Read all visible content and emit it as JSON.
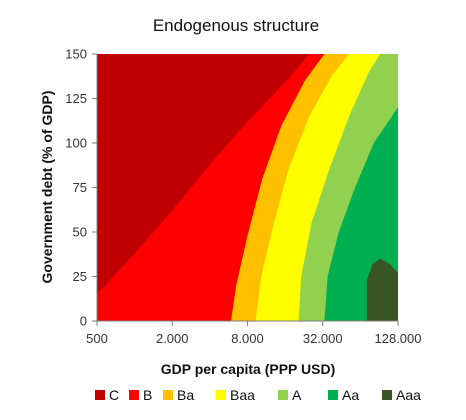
{
  "chart_data": {
    "type": "area",
    "title": "Endogenous structure",
    "xlabel": "GDP per capita (PPP USD)",
    "ylabel": "Government debt (% of GDP)",
    "x_scale": "log",
    "xlim": [
      500,
      128000
    ],
    "ylim": [
      0,
      150
    ],
    "x_ticks": [
      500,
      2000,
      8000,
      32000,
      128000
    ],
    "x_tick_labels": [
      "500",
      "2.000",
      "8.000",
      "32.000",
      "128.000"
    ],
    "y_ticks": [
      0,
      25,
      50,
      75,
      100,
      125,
      150
    ],
    "y_tick_labels": [
      "0",
      "25",
      "50",
      "75",
      "100",
      "125",
      "150"
    ],
    "grid": false,
    "legend_position": "bottom",
    "ratings": [
      {
        "name": "C",
        "color": "#c00000"
      },
      {
        "name": "B",
        "color": "#ff0000"
      },
      {
        "name": "Ba",
        "color": "#ffc000"
      },
      {
        "name": "Baa",
        "color": "#ffff00"
      },
      {
        "name": "A",
        "color": "#92d050"
      },
      {
        "name": "Aa",
        "color": "#00b050"
      },
      {
        "name": "Aaa",
        "color": "#375623"
      }
    ],
    "boundaries": [
      {
        "between": [
          "C",
          "B"
        ],
        "points": [
          [
            500,
            15
          ],
          [
            1000,
            38
          ],
          [
            2000,
            62
          ],
          [
            4000,
            88
          ],
          [
            8000,
            112
          ],
          [
            16000,
            134
          ],
          [
            25000,
            150
          ]
        ]
      },
      {
        "between": [
          "B",
          "Ba"
        ],
        "points": [
          [
            5900,
            0
          ],
          [
            6500,
            20
          ],
          [
            8000,
            48
          ],
          [
            10500,
            80
          ],
          [
            15000,
            110
          ],
          [
            23000,
            135
          ],
          [
            33000,
            150
          ]
        ]
      },
      {
        "between": [
          "Ba",
          "Baa"
        ],
        "points": [
          [
            9300,
            0
          ],
          [
            10300,
            25
          ],
          [
            13000,
            55
          ],
          [
            17000,
            85
          ],
          [
            25000,
            115
          ],
          [
            38000,
            138
          ],
          [
            52000,
            150
          ]
        ]
      },
      {
        "between": [
          "Baa",
          "A"
        ],
        "points": [
          [
            20500,
            0
          ],
          [
            21500,
            25
          ],
          [
            26000,
            55
          ],
          [
            36000,
            85
          ],
          [
            52000,
            115
          ],
          [
            75000,
            140
          ],
          [
            92000,
            150
          ]
        ]
      },
      {
        "between": [
          "A",
          "Aa"
        ],
        "points": [
          [
            33000,
            0
          ],
          [
            35000,
            25
          ],
          [
            43000,
            50
          ],
          [
            58000,
            75
          ],
          [
            82000,
            100
          ],
          [
            128000,
            120
          ]
        ]
      },
      {
        "between": [
          "Aa",
          "Aaa"
        ],
        "points": [
          [
            72000,
            0
          ],
          [
            72000,
            23
          ],
          [
            80000,
            32
          ],
          [
            92000,
            35
          ],
          [
            110000,
            32
          ],
          [
            128000,
            27
          ]
        ]
      }
    ]
  }
}
